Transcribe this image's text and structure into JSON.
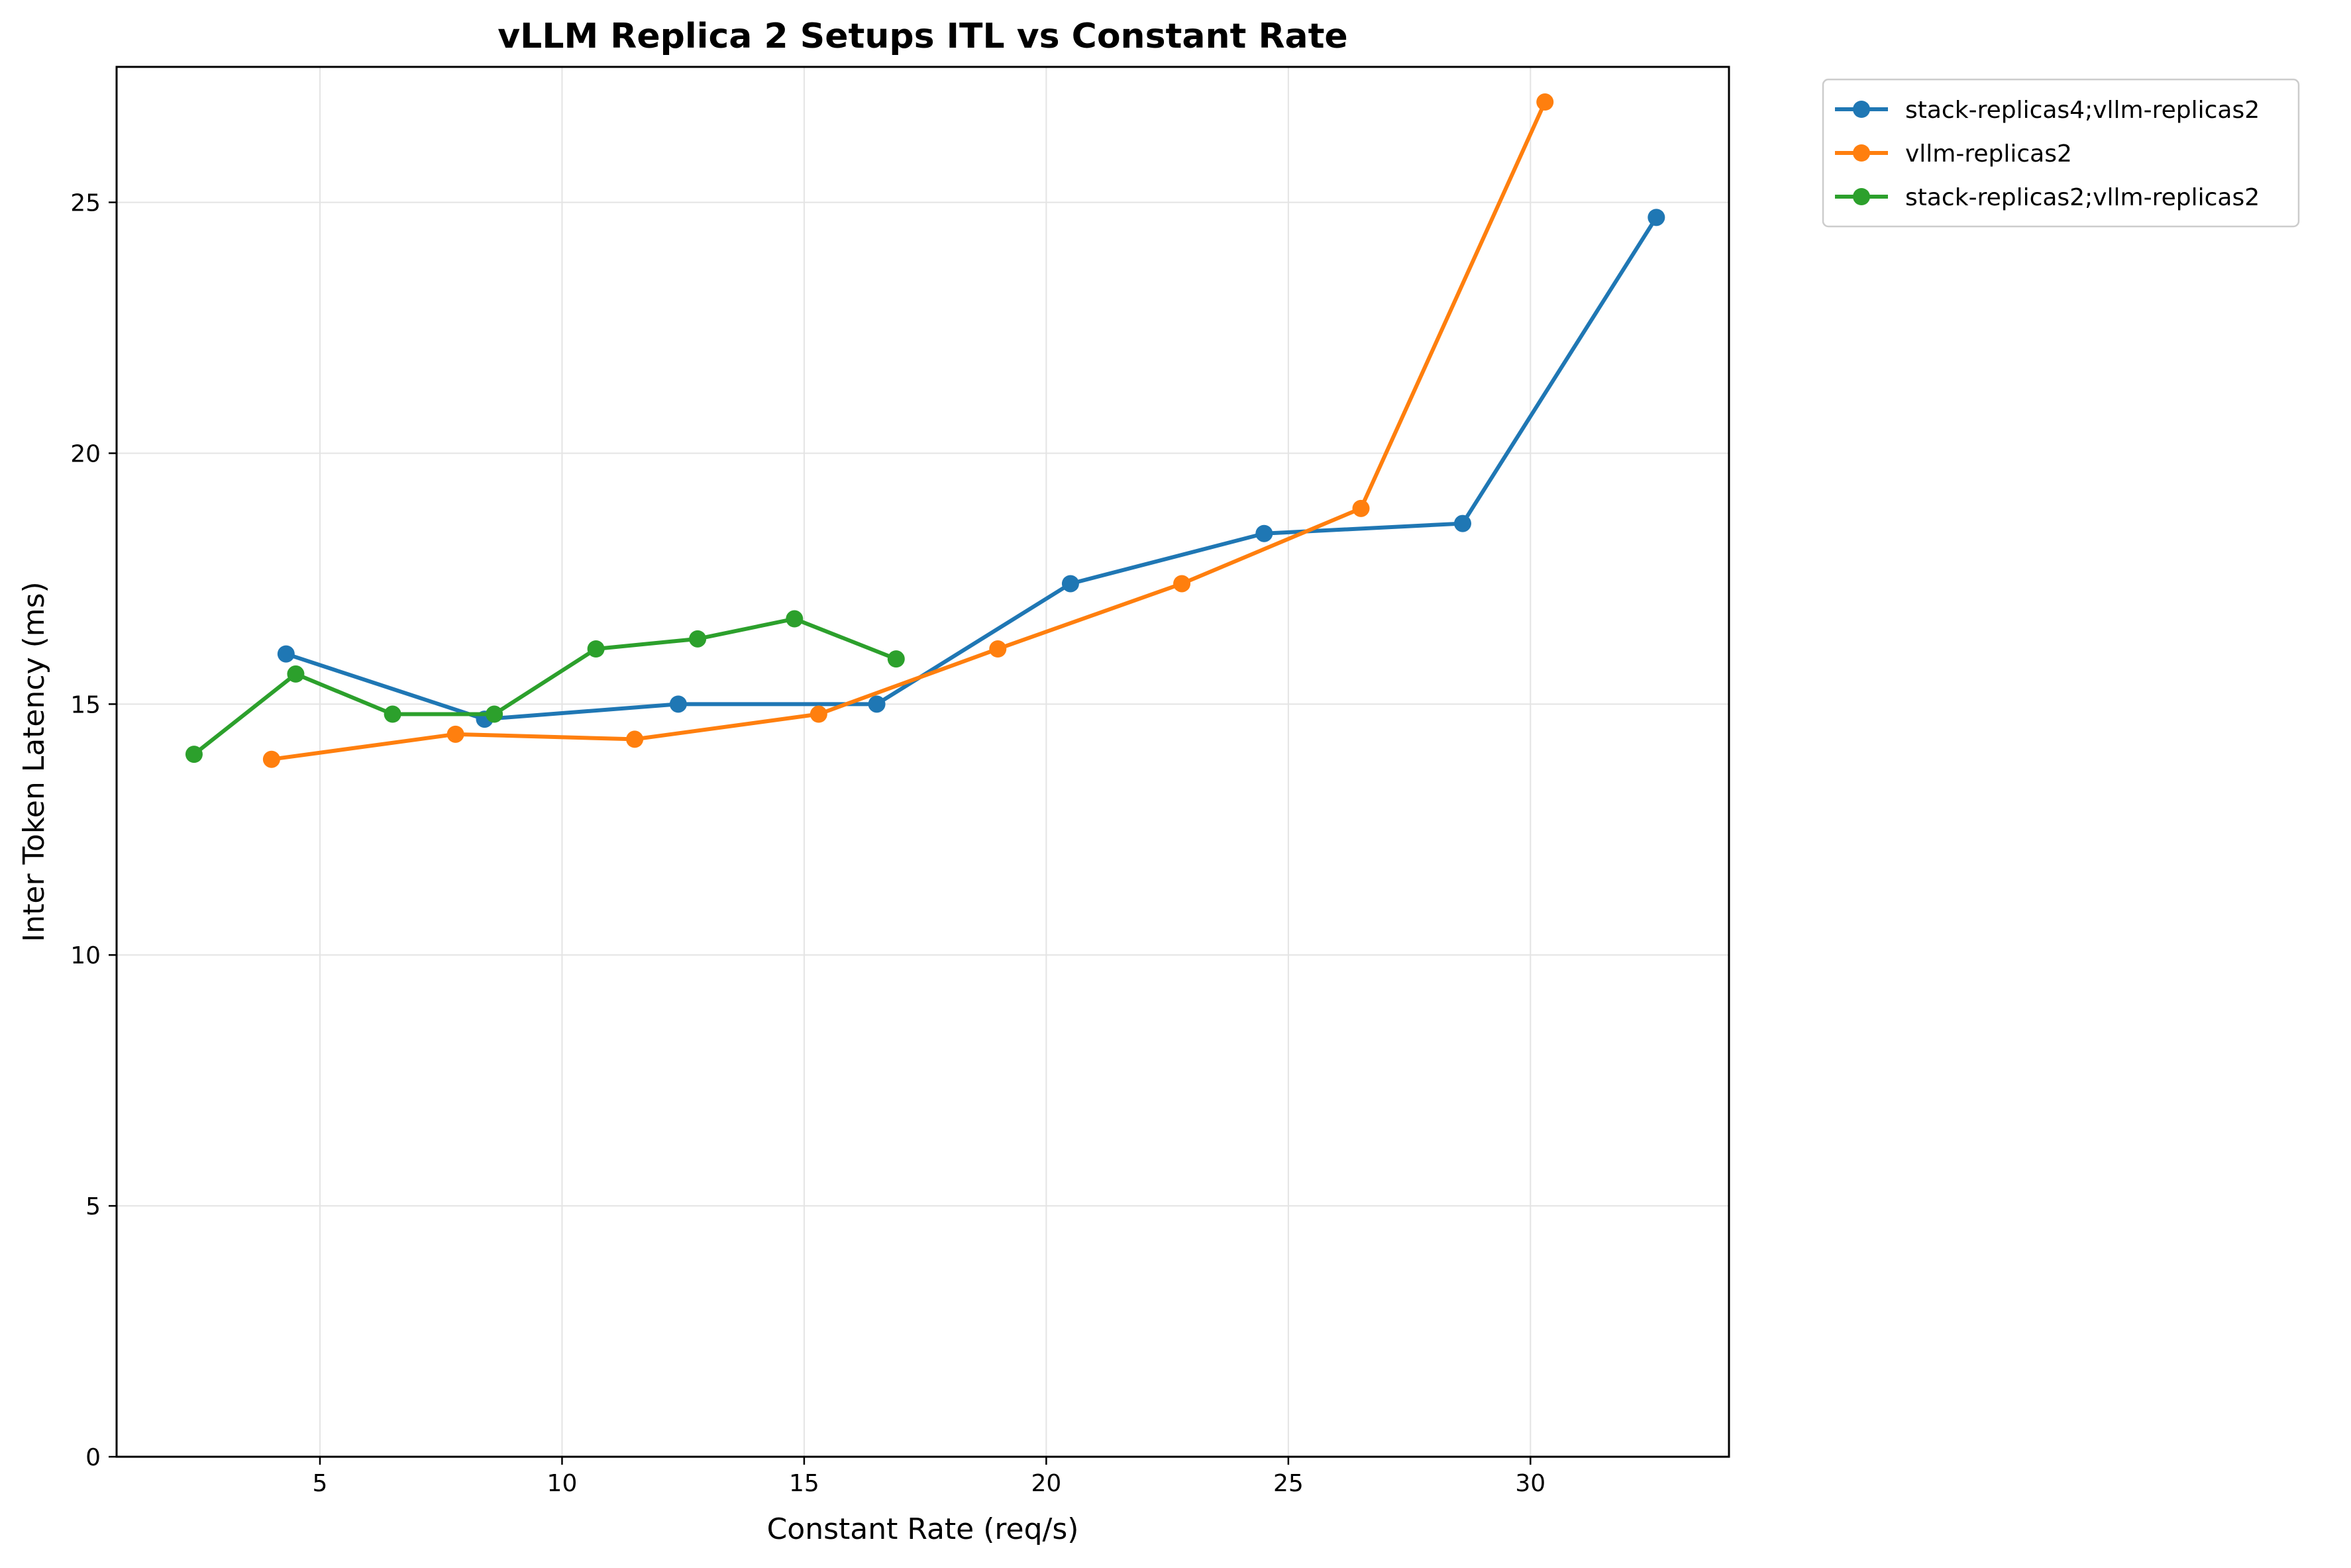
{
  "chart_data": {
    "type": "line",
    "title": "vLLM Replica 2 Setups ITL vs Constant Rate",
    "xlabel": "Constant Rate (req/s)",
    "ylabel": "Inter Token Latency (ms)",
    "xlim": [
      0.8,
      34.1
    ],
    "ylim": [
      0,
      27.7
    ],
    "xticks": [
      5,
      10,
      15,
      20,
      25,
      30
    ],
    "yticks": [
      0,
      5,
      10,
      15,
      20,
      25
    ],
    "grid": true,
    "legend_position": "outside-top-right",
    "series": [
      {
        "name": "stack-replicas4;vllm-replicas2",
        "color": "#1f77b4",
        "x": [
          4.3,
          8.4,
          12.4,
          16.5,
          20.5,
          24.5,
          28.6,
          32.6
        ],
        "y": [
          16.0,
          14.7,
          15.0,
          15.0,
          17.4,
          18.4,
          18.6,
          24.7
        ]
      },
      {
        "name": "vllm-replicas2",
        "color": "#ff7f0e",
        "x": [
          4.0,
          7.8,
          11.5,
          15.3,
          19.0,
          22.8,
          26.5,
          30.3
        ],
        "y": [
          13.9,
          14.4,
          14.3,
          14.8,
          16.1,
          17.4,
          18.9,
          27.0
        ]
      },
      {
        "name": "stack-replicas2;vllm-replicas2",
        "color": "#2ca02c",
        "x": [
          2.4,
          4.5,
          6.5,
          8.6,
          10.7,
          12.8,
          14.8,
          16.9
        ],
        "y": [
          14.0,
          15.6,
          14.8,
          14.8,
          16.1,
          16.3,
          16.7,
          15.9
        ]
      }
    ]
  }
}
